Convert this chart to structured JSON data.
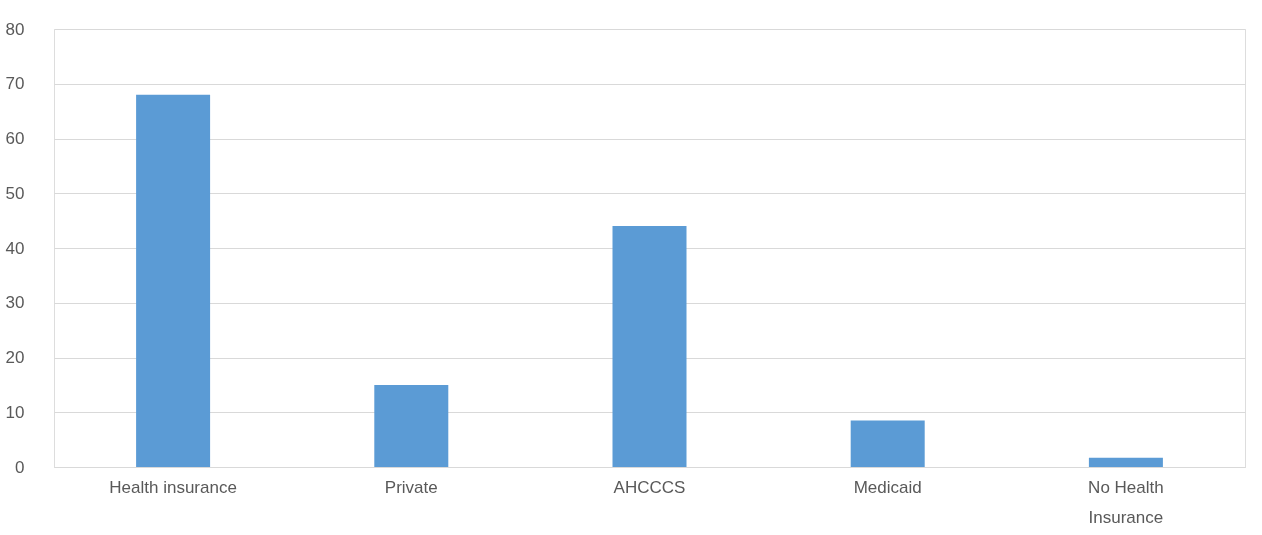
{
  "chart_data": {
    "type": "bar",
    "categories": [
      "Health insurance",
      "Private",
      "AHCCCS",
      "Medicaid",
      "No Health Insurance"
    ],
    "values": [
      68,
      15,
      44,
      8.5,
      1.7
    ],
    "color": "#5b9bd5",
    "ylim": [
      0,
      80
    ],
    "yticks": [
      0,
      10,
      20,
      30,
      40,
      50,
      60,
      70,
      80
    ],
    "grid": "y"
  }
}
